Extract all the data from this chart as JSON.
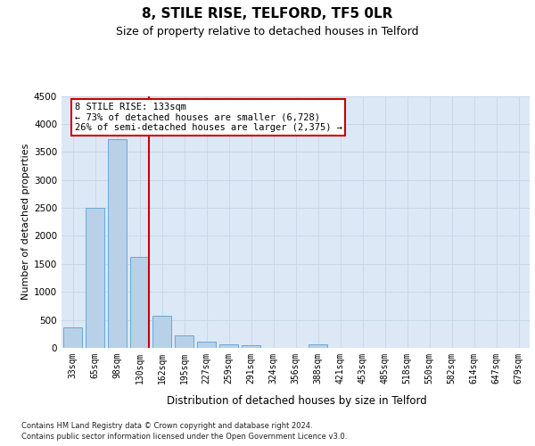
{
  "title": "8, STILE RISE, TELFORD, TF5 0LR",
  "subtitle": "Size of property relative to detached houses in Telford",
  "xlabel": "Distribution of detached houses by size in Telford",
  "ylabel": "Number of detached properties",
  "footer_line1": "Contains HM Land Registry data © Crown copyright and database right 2024.",
  "footer_line2": "Contains public sector information licensed under the Open Government Licence v3.0.",
  "categories": [
    "33sqm",
    "65sqm",
    "98sqm",
    "130sqm",
    "162sqm",
    "195sqm",
    "227sqm",
    "259sqm",
    "291sqm",
    "324sqm",
    "356sqm",
    "388sqm",
    "421sqm",
    "453sqm",
    "485sqm",
    "518sqm",
    "550sqm",
    "582sqm",
    "614sqm",
    "647sqm",
    "679sqm"
  ],
  "values": [
    370,
    2500,
    3720,
    1630,
    580,
    220,
    105,
    60,
    40,
    0,
    0,
    60,
    0,
    0,
    0,
    0,
    0,
    0,
    0,
    0,
    0
  ],
  "bar_color": "#b8d0e8",
  "bar_edge_color": "#6aaad4",
  "highlight_bar_index": 3,
  "highlight_color": "#cc0000",
  "annotation_text": "8 STILE RISE: 133sqm\n← 73% of detached houses are smaller (6,728)\n26% of semi-detached houses are larger (2,375) →",
  "annotation_box_color": "#ffffff",
  "annotation_box_edge_color": "#cc0000",
  "ylim": [
    0,
    4500
  ],
  "yticks": [
    0,
    500,
    1000,
    1500,
    2000,
    2500,
    3000,
    3500,
    4000,
    4500
  ],
  "grid_color": "#c8d8e8",
  "bg_color": "#dce8f5",
  "title_fontsize": 11,
  "subtitle_fontsize": 9,
  "xlabel_fontsize": 8.5,
  "ylabel_fontsize": 8,
  "tick_fontsize": 7,
  "annotation_fontsize": 7.5,
  "footer_fontsize": 6
}
